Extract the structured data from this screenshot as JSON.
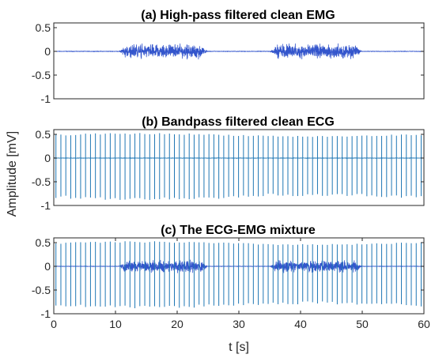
{
  "chart_data": [
    {
      "type": "line",
      "title": "(a) High-pass filtered clean EMG",
      "xlim": [
        0,
        60
      ],
      "ylim": [
        -1,
        0.6
      ],
      "yticks": [
        0.5,
        0,
        -0.5,
        -1
      ],
      "ytick_labels": [
        "0.5",
        "0",
        "-0.5",
        "-1"
      ],
      "color": "#2f52c8",
      "burst_color": "#3355cc",
      "series": [
        {
          "baseline_noise": 0.01,
          "emg_bursts": [
            {
              "start": 10.5,
              "end": 25.0,
              "amplitude": 0.12
            },
            {
              "start": 35.0,
              "end": 50.0,
              "amplitude": 0.12
            }
          ],
          "ecg": null
        }
      ],
      "grid": false
    },
    {
      "type": "line",
      "title": "(b) Bandpass filtered clean ECG",
      "xlim": [
        0,
        60
      ],
      "ylim": [
        -1,
        0.6
      ],
      "yticks": [
        0.5,
        0,
        -0.5,
        -1
      ],
      "ytick_labels": [
        "0.5",
        "0",
        "-0.5",
        "-1"
      ],
      "color": "#1f77b4",
      "series": [
        {
          "ecg": {
            "beats_per_second": 1.25,
            "peak_mv": 0.5,
            "trough_mv": -0.85,
            "modulation": 0.06
          },
          "emg_bursts": []
        }
      ],
      "grid": false
    },
    {
      "type": "line",
      "title": "(c) The ECG-EMG mixture",
      "xlim": [
        0,
        60
      ],
      "ylim": [
        -1,
        0.6
      ],
      "yticks": [
        0.5,
        0,
        -0.5,
        -1
      ],
      "ytick_labels": [
        "0.5",
        "0",
        "-0.5",
        "-1"
      ],
      "xticks": [
        0,
        10,
        20,
        30,
        40,
        50,
        60
      ],
      "xtick_labels": [
        "0",
        "10",
        "20",
        "30",
        "40",
        "50",
        "60"
      ],
      "color": "#1f77b4",
      "burst_color": "#3355cc",
      "series": [
        {
          "ecg": {
            "beats_per_second": 1.25,
            "peak_mv": 0.5,
            "trough_mv": -0.85,
            "modulation": 0.06
          },
          "emg_bursts": [
            {
              "start": 10.5,
              "end": 25.0,
              "amplitude": 0.1
            },
            {
              "start": 35.0,
              "end": 50.0,
              "amplitude": 0.1
            }
          ]
        }
      ],
      "grid": false
    }
  ],
  "ylabel": "Amplitude [mV]",
  "xlabel": "t [s]"
}
